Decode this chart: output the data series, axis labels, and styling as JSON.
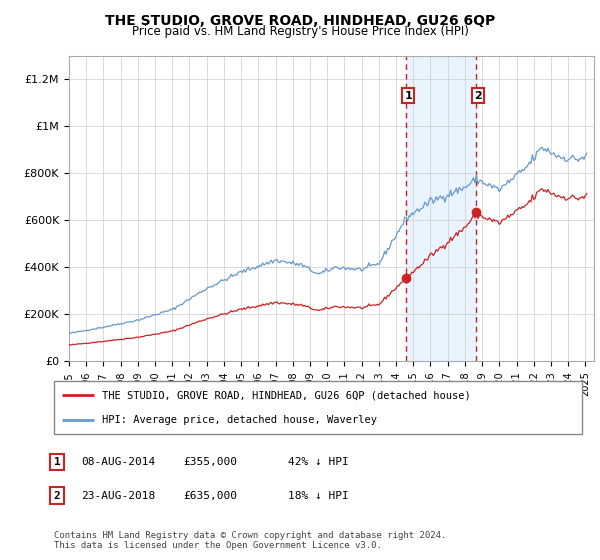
{
  "title": "THE STUDIO, GROVE ROAD, HINDHEAD, GU26 6QP",
  "subtitle": "Price paid vs. HM Land Registry's House Price Index (HPI)",
  "xlim": [
    1995.0,
    2025.5
  ],
  "ylim": [
    0,
    1300000
  ],
  "yticks": [
    0,
    200000,
    400000,
    600000,
    800000,
    1000000,
    1200000
  ],
  "ytick_labels": [
    "£0",
    "£200K",
    "£400K",
    "£600K",
    "£800K",
    "£1M",
    "£1.2M"
  ],
  "hpi_color": "#6699cc",
  "sale_color": "#cc2222",
  "shade_color": "#ddeeff",
  "sale1_year": 2014.6,
  "sale1_price": 355000,
  "sale2_year": 2018.65,
  "sale2_price": 635000,
  "legend_line1": "THE STUDIO, GROVE ROAD, HINDHEAD, GU26 6QP (detached house)",
  "legend_line2": "HPI: Average price, detached house, Waverley",
  "table_rows": [
    [
      "1",
      "08-AUG-2014",
      "£355,000",
      "42% ↓ HPI"
    ],
    [
      "2",
      "23-AUG-2018",
      "£635,000",
      "18% ↓ HPI"
    ]
  ],
  "footer": "Contains HM Land Registry data © Crown copyright and database right 2024.\nThis data is licensed under the Open Government Licence v3.0."
}
